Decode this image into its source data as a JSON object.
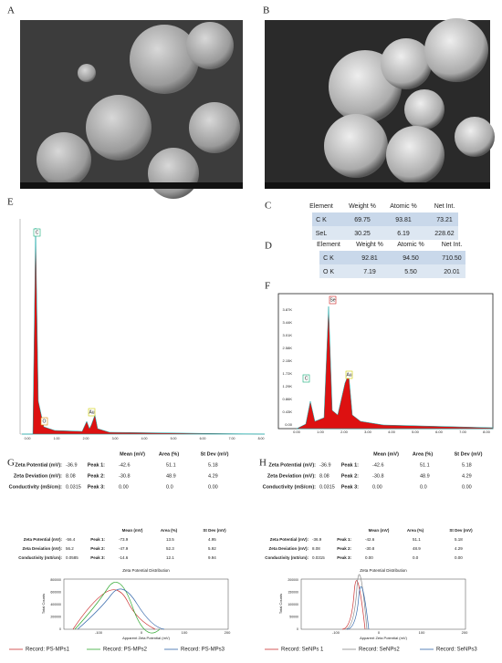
{
  "panels": [
    "A",
    "B",
    "C",
    "D",
    "E",
    "F",
    "G",
    "H"
  ],
  "table_c": {
    "header": [
      "Element",
      "Weight %",
      "Atomic %",
      "Net Int."
    ],
    "rows": [
      [
        "C K",
        "69.75",
        "93.81",
        "73.21"
      ],
      [
        "SeL",
        "30.25",
        "6.19",
        "228.62"
      ]
    ]
  },
  "table_d": {
    "header": [
      "Element",
      "Weight %",
      "Atomic %",
      "Net Int."
    ],
    "rows": [
      [
        "C K",
        "92.81",
        "94.50",
        "710.50"
      ],
      [
        "O K",
        "7.19",
        "5.50",
        "20.01"
      ]
    ]
  },
  "spectrum_e": {
    "peaks": [
      "C",
      "O",
      "Au"
    ],
    "xticks": [
      "0.00",
      "1.00",
      "2.00",
      "3.00",
      "4.00",
      "5.00",
      "6.00",
      "7.00",
      "8.00"
    ]
  },
  "spectrum_f": {
    "peaks": [
      "C",
      "Se",
      "Au"
    ],
    "xticks": [
      "0.00",
      "1.00",
      "2.00",
      "3.00",
      "4.00",
      "5.00",
      "6.00",
      "7.00",
      "8.00"
    ],
    "yticks": [
      "0.00",
      "0.43K",
      "0.86K",
      "1.29K",
      "1.72K",
      "2.15K",
      "2.58K",
      "3.01K",
      "3.44K",
      "3.87K"
    ]
  },
  "zeta": [
    {
      "header": [
        "Mean (mV)",
        "Area (%)",
        "St Dev (mV)"
      ],
      "labels": [
        "Zeta Potential (mV):",
        "Zeta Deviation (mV):",
        "Conductivity (mS/cm):"
      ],
      "values": [
        "-36.9",
        "8.08",
        "0.0315"
      ],
      "peaks": [
        [
          "Peak 1:",
          "-42.6",
          "51.1",
          "5.18"
        ],
        [
          "Peak 2:",
          "-30.8",
          "48.9",
          "4.29"
        ],
        [
          "Peak 3:",
          "0.00",
          "0.0",
          "0.00"
        ]
      ]
    },
    {
      "header": [
        "Mean (mV)",
        "Area (%)",
        "St Dev (mV)"
      ],
      "labels": [
        "Zeta Potential (mV):",
        "Zeta Deviation (mV):",
        "Conductivity (mS/cm):"
      ],
      "values": [
        "-36.9",
        "8.08",
        "0.0315"
      ],
      "peaks": [
        [
          "Peak 1:",
          "-42.6",
          "51.1",
          "5.18"
        ],
        [
          "Peak 2:",
          "-30.8",
          "48.9",
          "4.29"
        ],
        [
          "Peak 3:",
          "0.00",
          "0.0",
          "0.00"
        ]
      ]
    },
    {
      "header": [
        "Mean (mV)",
        "Area (%)",
        "St Dev (mV)"
      ],
      "labels": [
        "Zeta Potential (mV):",
        "Zeta Deviation (mV):",
        "Conductivity (mS/cm):"
      ],
      "values": [
        "-56.4",
        "56.2",
        "0.0585"
      ],
      "peaks": [
        [
          "Peak 1:",
          "-73.9",
          "13.5",
          "4.95"
        ],
        [
          "Peak 2:",
          "-47.9",
          "52.3",
          "5.92"
        ],
        [
          "Peak 3:",
          "-14.6",
          "12.1",
          "9.94"
        ]
      ],
      "plot": {
        "title": "Zeta Potential Distribution",
        "ylabel": "Total Counts",
        "xlabel": "Apparent Zeta Potential (mV)",
        "xticks": [
          "-100",
          "0",
          "100",
          "200"
        ],
        "yticks": [
          "0",
          "200000",
          "400000",
          "600000",
          "800000"
        ],
        "legend": [
          "Record: PS-MPs1",
          "Record: PS-MPs2",
          "Record: PS-MPs3"
        ]
      }
    },
    {
      "header": [
        "Mean (mV)",
        "Area (%)",
        "St Dev (mV)"
      ],
      "labels": [
        "Zeta Potential (mV):",
        "Zeta Deviation (mV):",
        "Conductivity (mS/cm):"
      ],
      "values": [
        "-36.9",
        "8.08",
        "0.0315"
      ],
      "peaks": [
        [
          "Peak 1:",
          "-42.6",
          "51.1",
          "5.18"
        ],
        [
          "Peak 2:",
          "-30.8",
          "48.9",
          "4.29"
        ],
        [
          "Peak 3:",
          "0.00",
          "0.0",
          "0.00"
        ]
      ],
      "plot": {
        "title": "Zeta Potential Distribution",
        "ylabel": "Total Counts",
        "xlabel": "Apparent Zeta Potential (mV)",
        "xticks": [
          "-100",
          "0",
          "100",
          "200"
        ],
        "yticks": [
          "0",
          "50000",
          "100000",
          "150000",
          "200000"
        ],
        "legend": [
          "Record: SeNPs 1",
          "Record: SeNPs2",
          "Record: SeNPs3"
        ]
      }
    }
  ]
}
